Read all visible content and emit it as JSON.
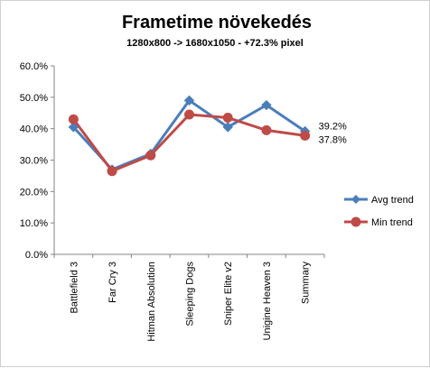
{
  "chart_data": {
    "type": "line",
    "title": "Frametime növekedés",
    "subtitle": "1280x800  -> 1680x1050  - +72.3% pixel",
    "categories": [
      "Battlefield 3",
      "Far Cry 3",
      "Hitman Absolution",
      "Sleeping Dogs",
      "Sniper Elite v2",
      "Unigine Heaven 3",
      "Summary"
    ],
    "series": [
      {
        "name": "Avg trend",
        "color": "#4a7ebb",
        "marker": "diamond",
        "values": [
          40.5,
          27.0,
          32.0,
          49.0,
          40.5,
          47.5,
          39.2
        ]
      },
      {
        "name": "Min trend",
        "color": "#be4b48",
        "marker": "circle",
        "values": [
          43.0,
          26.5,
          31.5,
          44.5,
          43.5,
          39.5,
          37.8
        ]
      }
    ],
    "ylim": [
      0,
      60
    ],
    "yticks": [
      "0.0%",
      "10.0%",
      "20.0%",
      "30.0%",
      "40.0%",
      "50.0%",
      "60.0%"
    ],
    "data_labels": [
      {
        "series": 0,
        "index": 6,
        "text": "39.2%"
      },
      {
        "series": 1,
        "index": 6,
        "text": "37.8%"
      }
    ],
    "xlabel": "",
    "ylabel": "",
    "grid": false,
    "legend": "right"
  }
}
